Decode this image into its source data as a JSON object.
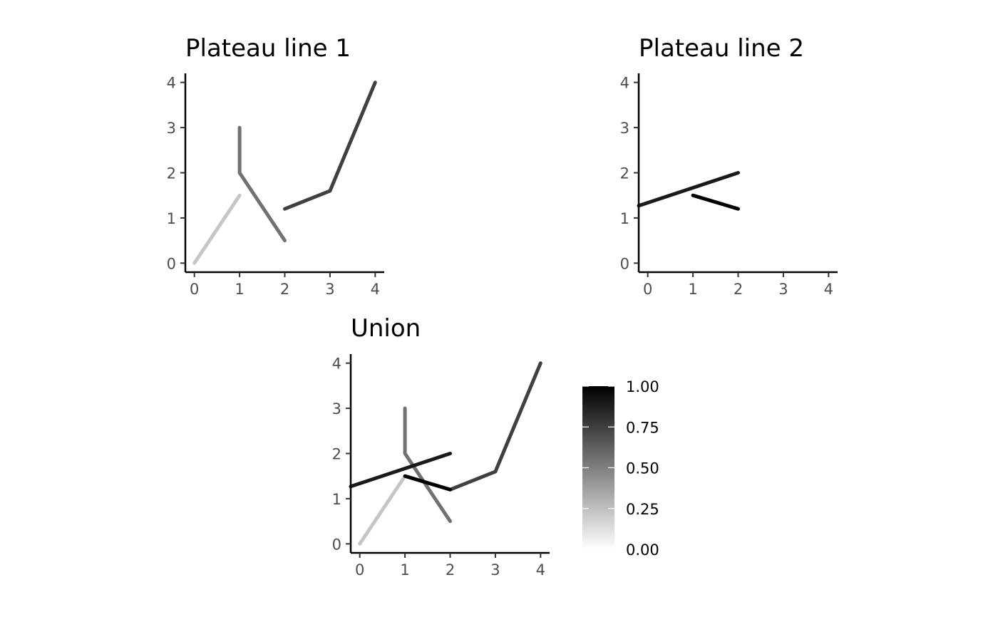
{
  "chart_data": [
    {
      "type": "line",
      "title": "Plateau line 1",
      "xlabel": "",
      "ylabel": "",
      "xlim": [
        -0.2,
        4.2
      ],
      "ylim": [
        -0.2,
        4.2
      ],
      "xticks": [
        "0",
        "1",
        "2",
        "3",
        "4"
      ],
      "yticks": [
        "0",
        "1",
        "2",
        "3",
        "4"
      ],
      "grid": false,
      "series": [
        {
          "points": [
            [
              0,
              0
            ],
            [
              1,
              1.5
            ]
          ],
          "value": 0.25,
          "color": "#c6c6c6"
        },
        {
          "points": [
            [
              1,
              3
            ],
            [
              1,
              2
            ],
            [
              2,
              0.5
            ]
          ],
          "value": 0.6,
          "color": "#717171"
        },
        {
          "points": [
            [
              2,
              1.2
            ],
            [
              3,
              1.6
            ],
            [
              4,
              4
            ]
          ],
          "value": 0.8,
          "color": "#404040"
        }
      ]
    },
    {
      "type": "line",
      "title": "Plateau line 2",
      "xlabel": "",
      "ylabel": "",
      "xlim": [
        -0.2,
        4.2
      ],
      "ylim": [
        -0.2,
        4.2
      ],
      "xticks": [
        "0",
        "1",
        "2",
        "3",
        "4"
      ],
      "yticks": [
        "0",
        "1",
        "2",
        "3",
        "4"
      ],
      "grid": false,
      "series": [
        {
          "points": [
            [
              -0.2,
              1.27
            ],
            [
              2,
              2
            ]
          ],
          "value": 0.95,
          "color": "#1a1a1a"
        },
        {
          "points": [
            [
              1,
              1.5
            ],
            [
              2,
              1.2
            ]
          ],
          "value": 1.0,
          "color": "#000000"
        }
      ]
    },
    {
      "type": "line",
      "title": "Union",
      "xlabel": "",
      "ylabel": "",
      "xlim": [
        -0.2,
        4.2
      ],
      "ylim": [
        -0.2,
        4.2
      ],
      "xticks": [
        "0",
        "1",
        "2",
        "3",
        "4"
      ],
      "yticks": [
        "0",
        "1",
        "2",
        "3",
        "4"
      ],
      "grid": false,
      "series": [
        {
          "points": [
            [
              0,
              0
            ],
            [
              1,
              1.5
            ]
          ],
          "value": 0.25,
          "color": "#c6c6c6"
        },
        {
          "points": [
            [
              1,
              3
            ],
            [
              1,
              2
            ],
            [
              2,
              0.5
            ]
          ],
          "value": 0.6,
          "color": "#717171"
        },
        {
          "points": [
            [
              2,
              1.2
            ],
            [
              3,
              1.6
            ],
            [
              4,
              4
            ]
          ],
          "value": 0.8,
          "color": "#404040"
        },
        {
          "points": [
            [
              -0.2,
              1.27
            ],
            [
              2,
              2
            ]
          ],
          "value": 0.95,
          "color": "#1a1a1a"
        },
        {
          "points": [
            [
              1,
              1.5
            ],
            [
              2,
              1.2
            ]
          ],
          "value": 1.0,
          "color": "#000000"
        }
      ]
    }
  ],
  "legend": {
    "type": "colorbar",
    "placement": "right of Union panel",
    "range": [
      0,
      1
    ],
    "color_low": "#ffffff",
    "color_high": "#000000",
    "ticks": [
      {
        "value": 1.0,
        "label": "1.00"
      },
      {
        "value": 0.75,
        "label": "0.75"
      },
      {
        "value": 0.5,
        "label": "0.50"
      },
      {
        "value": 0.25,
        "label": "0.25"
      },
      {
        "value": 0.0,
        "label": "0.00"
      }
    ]
  }
}
